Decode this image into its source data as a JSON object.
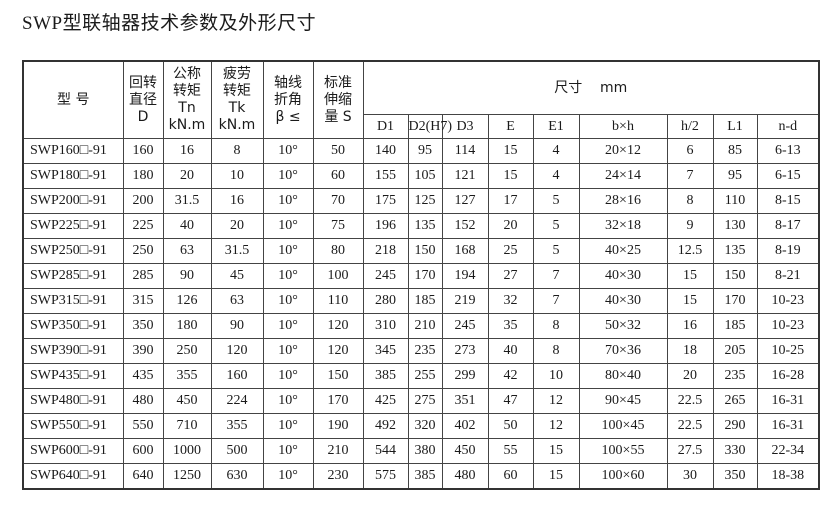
{
  "title": "SWP型联轴器技术参数及外形尺寸",
  "header": {
    "model": "型  号",
    "diameter": [
      "回转",
      "直径",
      "D"
    ],
    "nominal_torque": [
      "公称",
      "转矩",
      "Tn",
      "kN.m"
    ],
    "fatigue_torque": [
      "疲劳",
      "转矩",
      "Tk",
      "kN.m"
    ],
    "angle": [
      "轴线",
      "折角",
      "β ≤"
    ],
    "stretch": [
      "标准",
      "伸缩",
      "量 S"
    ],
    "dimensions": "尺寸    mm",
    "dim_columns": [
      "D1",
      "D2(H7)",
      "D3",
      "E",
      "E1",
      "b×h",
      "h/2",
      "L1",
      "n-d"
    ]
  },
  "rows": [
    [
      "SWP160□-91",
      "160",
      "16",
      "8",
      "10°",
      "50",
      "140",
      "95",
      "114",
      "15",
      "4",
      "20×12",
      "6",
      "85",
      "6-13"
    ],
    [
      "SWP180□-91",
      "180",
      "20",
      "10",
      "10°",
      "60",
      "155",
      "105",
      "121",
      "15",
      "4",
      "24×14",
      "7",
      "95",
      "6-15"
    ],
    [
      "SWP200□-91",
      "200",
      "31.5",
      "16",
      "10°",
      "70",
      "175",
      "125",
      "127",
      "17",
      "5",
      "28×16",
      "8",
      "110",
      "8-15"
    ],
    [
      "SWP225□-91",
      "225",
      "40",
      "20",
      "10°",
      "75",
      "196",
      "135",
      "152",
      "20",
      "5",
      "32×18",
      "9",
      "130",
      "8-17"
    ],
    [
      "SWP250□-91",
      "250",
      "63",
      "31.5",
      "10°",
      "80",
      "218",
      "150",
      "168",
      "25",
      "5",
      "40×25",
      "12.5",
      "135",
      "8-19"
    ],
    [
      "SWP285□-91",
      "285",
      "90",
      "45",
      "10°",
      "100",
      "245",
      "170",
      "194",
      "27",
      "7",
      "40×30",
      "15",
      "150",
      "8-21"
    ],
    [
      "SWP315□-91",
      "315",
      "126",
      "63",
      "10°",
      "110",
      "280",
      "185",
      "219",
      "32",
      "7",
      "40×30",
      "15",
      "170",
      "10-23"
    ],
    [
      "SWP350□-91",
      "350",
      "180",
      "90",
      "10°",
      "120",
      "310",
      "210",
      "245",
      "35",
      "8",
      "50×32",
      "16",
      "185",
      "10-23"
    ],
    [
      "SWP390□-91",
      "390",
      "250",
      "120",
      "10°",
      "120",
      "345",
      "235",
      "273",
      "40",
      "8",
      "70×36",
      "18",
      "205",
      "10-25"
    ],
    [
      "SWP435□-91",
      "435",
      "355",
      "160",
      "10°",
      "150",
      "385",
      "255",
      "299",
      "42",
      "10",
      "80×40",
      "20",
      "235",
      "16-28"
    ],
    [
      "SWP480□-91",
      "480",
      "450",
      "224",
      "10°",
      "170",
      "425",
      "275",
      "351",
      "47",
      "12",
      "90×45",
      "22.5",
      "265",
      "16-31"
    ],
    [
      "SWP550□-91",
      "550",
      "710",
      "355",
      "10°",
      "190",
      "492",
      "320",
      "402",
      "50",
      "12",
      "100×45",
      "22.5",
      "290",
      "16-31"
    ],
    [
      "SWP600□-91",
      "600",
      "1000",
      "500",
      "10°",
      "210",
      "544",
      "380",
      "450",
      "55",
      "15",
      "100×55",
      "27.5",
      "330",
      "22-34"
    ],
    [
      "SWP640□-91",
      "640",
      "1250",
      "630",
      "10°",
      "230",
      "575",
      "385",
      "480",
      "60",
      "15",
      "100×60",
      "30",
      "350",
      "18-38"
    ]
  ]
}
